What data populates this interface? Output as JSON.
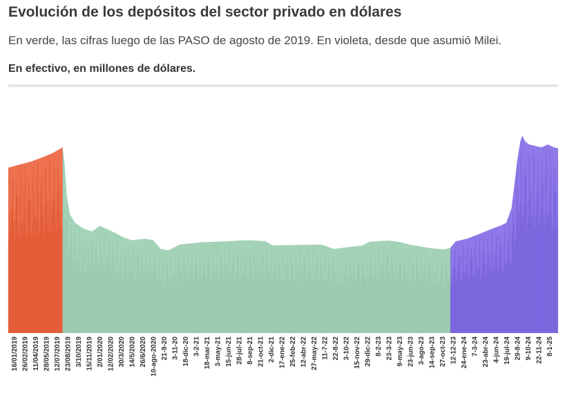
{
  "header": {
    "title": "Evolución de los depósitos del sector privado en dólares",
    "subtitle": "En verde, las cifras luego de las PASO de agosto de 2019. En violeta, desde que asumió Milei.",
    "unit_note": "En efectivo, en millones de dólares."
  },
  "colors": {
    "pre_paso": "#ee7250",
    "pre_paso_dark": "#d9431c",
    "post_paso": "#a4d3b8",
    "post_paso_dark": "#8fc2a6",
    "milei": "#8f79e8",
    "milei_dark": "#6a52d6",
    "divider": "#e5e5e5"
  },
  "chart_data": {
    "type": "area",
    "title": "",
    "xlabel": "",
    "ylabel": "",
    "grid": false,
    "x_ticks": [
      "16/01/2019",
      "26/02/2019",
      "11/04/2019",
      "28/05/2019",
      "12/07/2019",
      "23/08/2019",
      "3/10/2019",
      "15/11/2019",
      "2/01/2020",
      "12/02/2020",
      "30/3/2020",
      "14/5/2020",
      "26/6/2020",
      "10-ago-2020",
      "21-9-20",
      "3-11-20",
      "18-dic-20",
      "3-2-21",
      "18-mar-21",
      "3-may-21",
      "15-jun-21",
      "28-jul-21",
      "8-sep-21",
      "21-oct-21",
      "2-dic-21",
      "17-ene-22",
      "25-feb-22",
      "12-abr-22",
      "27-may-22",
      "11-7-22",
      "22-8-22",
      "3-10-22",
      "15-nov-22",
      "29-dic-22",
      "8-2-23",
      "23-3-23",
      "9-may-23",
      "23-jun-23",
      "3-ago-23",
      "14-sep-23",
      "27-oct-23",
      "12-12-23",
      "24-ene-24",
      "7-3-24",
      "23-abr-24",
      "4-jun-24",
      "19-jul-24",
      "29-8-24",
      "9-10-24",
      "22-11-24",
      "8-1-25"
    ],
    "series": [
      {
        "segment": "pre_paso",
        "from": "2019-01-02",
        "to": "2019-08-12",
        "points": [
          [
            "2019-01-02",
            57
          ],
          [
            "2019-02-15",
            58
          ],
          [
            "2019-04-01",
            59
          ],
          [
            "2019-05-20",
            60.5
          ],
          [
            "2019-07-01",
            62
          ],
          [
            "2019-08-12",
            64
          ]
        ]
      },
      {
        "segment": "post_paso",
        "from": "2019-08-12",
        "to": "2023-12-10",
        "points": [
          [
            "2019-08-12",
            64
          ],
          [
            "2019-08-20",
            58
          ],
          [
            "2019-08-28",
            48
          ],
          [
            "2019-09-10",
            41
          ],
          [
            "2019-10-01",
            38
          ],
          [
            "2019-11-05",
            36
          ],
          [
            "2019-12-10",
            35
          ],
          [
            "2020-01-10",
            37
          ],
          [
            "2020-03-01",
            35
          ],
          [
            "2020-04-15",
            33
          ],
          [
            "2020-05-20",
            32
          ],
          [
            "2020-07-15",
            32.5
          ],
          [
            "2020-08-15",
            32
          ],
          [
            "2020-09-15",
            29
          ],
          [
            "2020-10-15",
            28.5
          ],
          [
            "2020-12-01",
            30.5
          ],
          [
            "2021-03-01",
            31.3
          ],
          [
            "2021-06-01",
            31.6
          ],
          [
            "2021-09-01",
            32
          ],
          [
            "2021-11-15",
            31.7
          ],
          [
            "2021-12-15",
            30.2
          ],
          [
            "2022-02-01",
            30.3
          ],
          [
            "2022-05-01",
            30.4
          ],
          [
            "2022-07-01",
            30.5
          ],
          [
            "2022-08-22",
            29
          ],
          [
            "2022-10-15",
            29.6
          ],
          [
            "2022-12-15",
            30.2
          ],
          [
            "2023-01-15",
            31.5
          ],
          [
            "2023-04-01",
            31.9
          ],
          [
            "2023-05-15",
            31.4
          ],
          [
            "2023-07-01",
            30.4
          ],
          [
            "2023-09-15",
            29.3
          ],
          [
            "2023-11-15",
            28.8
          ],
          [
            "2023-12-10",
            29.4
          ]
        ]
      },
      {
        "segment": "milei",
        "from": "2023-12-10",
        "to": "2025-02-21",
        "points": [
          [
            "2023-12-10",
            29.4
          ],
          [
            "2024-01-01",
            31.6
          ],
          [
            "2024-02-15",
            32.5
          ],
          [
            "2024-04-01",
            34
          ],
          [
            "2024-06-01",
            36.1
          ],
          [
            "2024-07-01",
            37
          ],
          [
            "2024-07-25",
            38
          ],
          [
            "2024-08-15",
            43
          ],
          [
            "2024-08-28",
            52
          ],
          [
            "2024-09-08",
            60
          ],
          [
            "2024-09-20",
            66
          ],
          [
            "2024-09-28",
            68
          ],
          [
            "2024-10-10",
            66
          ],
          [
            "2024-10-25",
            65
          ],
          [
            "2024-11-15",
            64.6
          ],
          [
            "2024-12-15",
            64
          ],
          [
            "2025-01-10",
            65
          ],
          [
            "2025-02-01",
            64.1
          ],
          [
            "2025-02-21",
            63.6
          ]
        ]
      }
    ]
  }
}
